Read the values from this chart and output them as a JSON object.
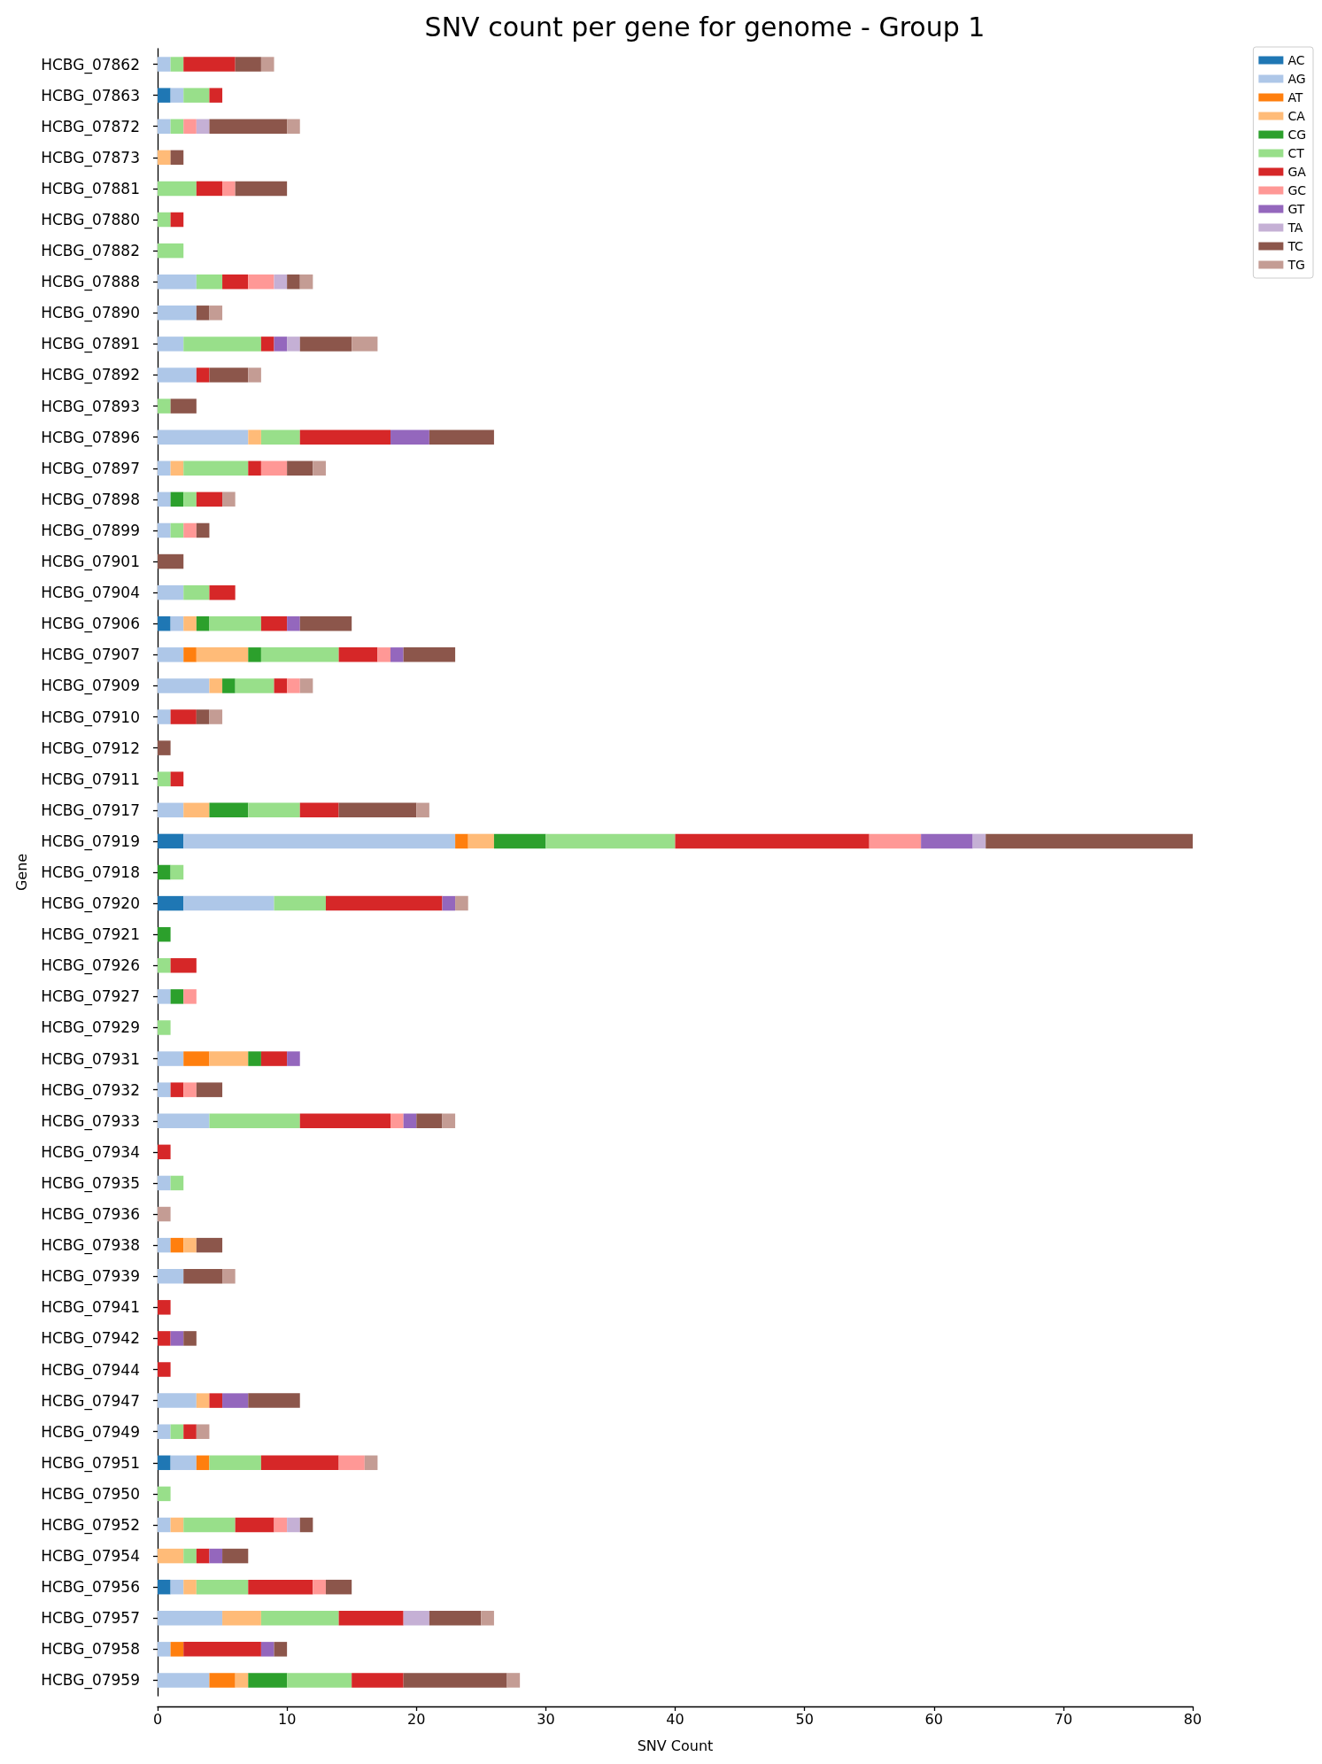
{
  "chart_data": {
    "type": "bar",
    "orientation": "horizontal",
    "stacked": true,
    "title": "SNV count per gene for genome - Group 1",
    "xlabel": "SNV Count",
    "ylabel": "Gene",
    "categories": [
      "HCBG_07862",
      "HCBG_07863",
      "HCBG_07872",
      "HCBG_07873",
      "HCBG_07881",
      "HCBG_07880",
      "HCBG_07882",
      "HCBG_07888",
      "HCBG_07890",
      "HCBG_07891",
      "HCBG_07892",
      "HCBG_07893",
      "HCBG_07896",
      "HCBG_07897",
      "HCBG_07898",
      "HCBG_07899",
      "HCBG_07901",
      "HCBG_07904",
      "HCBG_07906",
      "HCBG_07907",
      "HCBG_07909",
      "HCBG_07910",
      "HCBG_07912",
      "HCBG_07911",
      "HCBG_07917",
      "HCBG_07919",
      "HCBG_07918",
      "HCBG_07920",
      "HCBG_07921",
      "HCBG_07926",
      "HCBG_07927",
      "HCBG_07929",
      "HCBG_07931",
      "HCBG_07932",
      "HCBG_07933",
      "HCBG_07934",
      "HCBG_07935",
      "HCBG_07936",
      "HCBG_07938",
      "HCBG_07939",
      "HCBG_07941",
      "HCBG_07942",
      "HCBG_07944",
      "HCBG_07947",
      "HCBG_07949",
      "HCBG_07951",
      "HCBG_07950",
      "HCBG_07952",
      "HCBG_07954",
      "HCBG_07956",
      "HCBG_07957",
      "HCBG_07958",
      "HCBG_07959"
    ],
    "series": [
      {
        "name": "AC",
        "color": "#1f77b4",
        "values": [
          0,
          1,
          0,
          0,
          0,
          0,
          0,
          0,
          0,
          0,
          0,
          0,
          0,
          0,
          0,
          0,
          0,
          0,
          1,
          0,
          0,
          0,
          0,
          0,
          0,
          2,
          0,
          2,
          0,
          0,
          0,
          0,
          0,
          0,
          0,
          0,
          0,
          0,
          0,
          0,
          0,
          0,
          0,
          0,
          0,
          1,
          0,
          0,
          0,
          1,
          0,
          0,
          0
        ]
      },
      {
        "name": "AG",
        "color": "#aec7e8",
        "values": [
          1,
          1,
          1,
          0,
          0,
          0,
          0,
          3,
          3,
          2,
          3,
          0,
          7,
          1,
          1,
          1,
          0,
          2,
          1,
          2,
          4,
          1,
          0,
          0,
          2,
          21,
          0,
          7,
          0,
          0,
          1,
          0,
          2,
          1,
          4,
          0,
          1,
          0,
          1,
          2,
          0,
          0,
          0,
          3,
          1,
          2,
          0,
          1,
          0,
          1,
          5,
          1,
          4
        ]
      },
      {
        "name": "AT",
        "color": "#ff7f0e",
        "values": [
          0,
          0,
          0,
          0,
          0,
          0,
          0,
          0,
          0,
          0,
          0,
          0,
          0,
          0,
          0,
          0,
          0,
          0,
          0,
          1,
          0,
          0,
          0,
          0,
          0,
          1,
          0,
          0,
          0,
          0,
          0,
          0,
          2,
          0,
          0,
          0,
          0,
          0,
          1,
          0,
          0,
          0,
          0,
          0,
          0,
          1,
          0,
          0,
          0,
          0,
          0,
          1,
          2
        ]
      },
      {
        "name": "CA",
        "color": "#ffbb78",
        "values": [
          0,
          0,
          0,
          1,
          0,
          0,
          0,
          0,
          0,
          0,
          0,
          0,
          1,
          1,
          0,
          0,
          0,
          0,
          1,
          4,
          1,
          0,
          0,
          0,
          2,
          2,
          0,
          0,
          0,
          0,
          0,
          0,
          3,
          0,
          0,
          0,
          0,
          0,
          1,
          0,
          0,
          0,
          0,
          1,
          0,
          0,
          0,
          1,
          2,
          1,
          3,
          0,
          1
        ]
      },
      {
        "name": "CG",
        "color": "#2ca02c",
        "values": [
          0,
          0,
          0,
          0,
          0,
          0,
          0,
          0,
          0,
          0,
          0,
          0,
          0,
          0,
          1,
          0,
          0,
          0,
          1,
          1,
          1,
          0,
          0,
          0,
          3,
          4,
          1,
          0,
          1,
          0,
          1,
          0,
          1,
          0,
          0,
          0,
          0,
          0,
          0,
          0,
          0,
          0,
          0,
          0,
          0,
          0,
          0,
          0,
          0,
          0,
          0,
          0,
          3
        ]
      },
      {
        "name": "CT",
        "color": "#98df8a",
        "values": [
          1,
          2,
          1,
          0,
          3,
          1,
          2,
          2,
          0,
          6,
          0,
          1,
          3,
          5,
          1,
          1,
          0,
          2,
          4,
          6,
          3,
          0,
          0,
          1,
          4,
          10,
          1,
          4,
          0,
          1,
          0,
          1,
          0,
          0,
          7,
          0,
          1,
          0,
          0,
          0,
          0,
          0,
          0,
          0,
          1,
          4,
          1,
          4,
          1,
          4,
          6,
          0,
          5
        ]
      },
      {
        "name": "GA",
        "color": "#d62728",
        "values": [
          4,
          1,
          0,
          0,
          2,
          1,
          0,
          2,
          0,
          1,
          1,
          0,
          7,
          1,
          2,
          0,
          0,
          2,
          2,
          3,
          1,
          2,
          0,
          1,
          3,
          15,
          0,
          9,
          0,
          2,
          0,
          0,
          2,
          1,
          7,
          1,
          0,
          0,
          0,
          0,
          1,
          1,
          1,
          1,
          1,
          6,
          0,
          3,
          1,
          5,
          5,
          6,
          4
        ]
      },
      {
        "name": "GC",
        "color": "#ff9896",
        "values": [
          0,
          0,
          1,
          0,
          1,
          0,
          0,
          2,
          0,
          0,
          0,
          0,
          0,
          2,
          0,
          1,
          0,
          0,
          0,
          1,
          1,
          0,
          0,
          0,
          0,
          4,
          0,
          0,
          0,
          0,
          1,
          0,
          0,
          1,
          1,
          0,
          0,
          0,
          0,
          0,
          0,
          0,
          0,
          0,
          0,
          2,
          0,
          1,
          0,
          1,
          0,
          0,
          0
        ]
      },
      {
        "name": "GT",
        "color": "#9467bd",
        "values": [
          0,
          0,
          0,
          0,
          0,
          0,
          0,
          0,
          0,
          1,
          0,
          0,
          3,
          0,
          0,
          0,
          0,
          0,
          1,
          1,
          0,
          0,
          0,
          0,
          0,
          4,
          0,
          1,
          0,
          0,
          0,
          0,
          1,
          0,
          1,
          0,
          0,
          0,
          0,
          0,
          0,
          1,
          0,
          2,
          0,
          0,
          0,
          0,
          1,
          0,
          0,
          1,
          0
        ]
      },
      {
        "name": "TA",
        "color": "#c5b0d5",
        "values": [
          0,
          0,
          1,
          0,
          0,
          0,
          0,
          1,
          0,
          1,
          0,
          0,
          0,
          0,
          0,
          0,
          0,
          0,
          0,
          0,
          0,
          0,
          0,
          0,
          0,
          1,
          0,
          0,
          0,
          0,
          0,
          0,
          0,
          0,
          0,
          0,
          0,
          0,
          0,
          0,
          0,
          0,
          0,
          0,
          0,
          0,
          0,
          1,
          0,
          0,
          2,
          0,
          0
        ]
      },
      {
        "name": "TC",
        "color": "#8c564b",
        "values": [
          2,
          0,
          6,
          1,
          4,
          0,
          0,
          1,
          1,
          4,
          3,
          2,
          5,
          2,
          0,
          1,
          2,
          0,
          4,
          4,
          0,
          1,
          1,
          0,
          6,
          16,
          0,
          0,
          0,
          0,
          0,
          0,
          0,
          2,
          2,
          0,
          0,
          0,
          2,
          3,
          0,
          1,
          0,
          4,
          0,
          0,
          0,
          1,
          2,
          2,
          4,
          1,
          8
        ]
      },
      {
        "name": "TG",
        "color": "#c49c94",
        "values": [
          1,
          0,
          1,
          0,
          0,
          0,
          0,
          1,
          1,
          2,
          1,
          0,
          0,
          1,
          1,
          0,
          0,
          0,
          0,
          0,
          1,
          1,
          0,
          0,
          1,
          0,
          0,
          1,
          0,
          0,
          0,
          0,
          0,
          0,
          1,
          0,
          0,
          1,
          0,
          1,
          0,
          0,
          0,
          0,
          1,
          1,
          0,
          0,
          0,
          0,
          1,
          0,
          1
        ]
      }
    ],
    "xlim": [
      0,
      80
    ],
    "xticks": [
      0,
      10,
      20,
      30,
      40,
      50,
      60,
      70,
      80
    ],
    "grid": false,
    "legend": "top right"
  }
}
